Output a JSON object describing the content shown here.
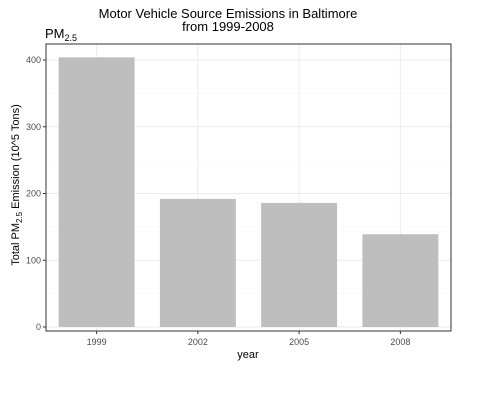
{
  "chart_data": {
    "type": "bar",
    "title_lines": [
      "Motor Vehicle Source Emissions in Baltimore",
      "from 1999-2008"
    ],
    "corner_label": {
      "main": "PM",
      "sub": "2.5"
    },
    "xlabel": "year",
    "ylabel": {
      "before": "Total PM",
      "sub": "2.5",
      "after": " Emission (10^5 Tons)"
    },
    "categories": [
      "1999",
      "2002",
      "2005",
      "2008"
    ],
    "values": [
      404,
      192,
      186,
      139
    ],
    "ylim": [
      -6,
      424
    ],
    "yticks": [
      0,
      100,
      200,
      300,
      400
    ],
    "grid": true,
    "bar_color": "#bebebe",
    "grid_major_color": "#ebebeb",
    "grid_minor_color": "#f5f5f5",
    "panel_border_color": "#333333"
  }
}
